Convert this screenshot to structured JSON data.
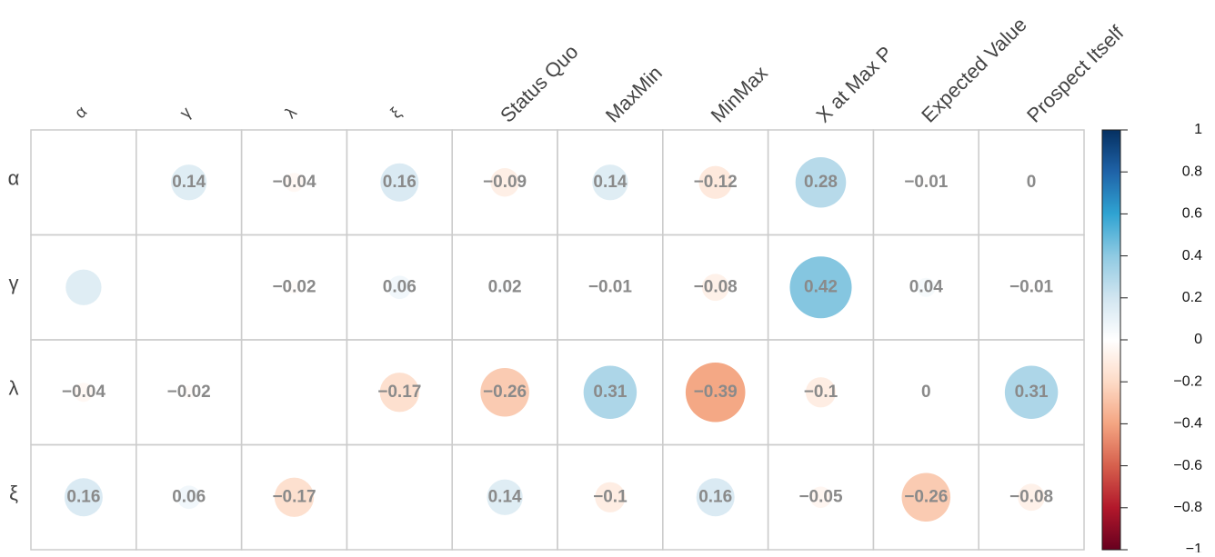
{
  "chart_data": {
    "type": "corrplot",
    "rows": [
      "α",
      "γ",
      "λ",
      "ξ"
    ],
    "columns": [
      "α",
      "γ",
      "λ",
      "ξ",
      "Status Quo",
      "MaxMin",
      "MinMax",
      "X at Max P",
      "Expected Value",
      "Prospect Itself"
    ],
    "values": [
      [
        null,
        0.14,
        -0.04,
        0.16,
        -0.09,
        0.14,
        -0.12,
        0.28,
        -0.01,
        0
      ],
      [
        0.14,
        null,
        -0.02,
        0.06,
        0.02,
        -0.01,
        -0.08,
        0.42,
        0.04,
        -0.01
      ],
      [
        -0.04,
        -0.02,
        null,
        -0.17,
        -0.26,
        0.31,
        -0.39,
        -0.1,
        0,
        0.31
      ],
      [
        0.16,
        0.06,
        -0.17,
        null,
        0.14,
        -0.1,
        0.16,
        -0.05,
        -0.26,
        -0.08
      ]
    ],
    "value_labels": [
      [
        null,
        "0.14",
        "−0.04",
        "0.16",
        "−0.09",
        "0.14",
        "−0.12",
        "0.28",
        "−0.01",
        "0"
      ],
      [
        null,
        null,
        "−0.02",
        "0.06",
        "0.02",
        "−0.01",
        "−0.08",
        "0.42",
        "0.04",
        "−0.01"
      ],
      [
        "−0.04",
        "−0.02",
        null,
        "−0.17",
        "−0.26",
        "0.31",
        "−0.39",
        "−0.1",
        "0",
        "0.31"
      ],
      [
        "0.16",
        "0.06",
        "−0.17",
        null,
        "0.14",
        "−0.1",
        "0.16",
        "−0.05",
        "−0.26",
        "−0.08"
      ]
    ],
    "clim": [
      -1,
      1
    ],
    "cticks": [
      1,
      0.8,
      0.6,
      0.4,
      0.2,
      0,
      {
        "value": -0.2,
        "label": "−0.2"
      },
      {
        "value": -0.4,
        "label": "−0.4"
      },
      {
        "value": -0.6,
        "label": "−0.6"
      },
      {
        "value": -0.8,
        "label": "−0.8"
      },
      {
        "value": -1,
        "label": "−1"
      }
    ],
    "colors": [
      "#67001F",
      "#B2182B",
      "#D6604D",
      "#F4A582",
      "#FDDBC7",
      "#FFFFFF",
      "#D1E5F0",
      "#8FCAE2",
      "#2FA3D2",
      "#1F63A8",
      "#053061"
    ]
  }
}
